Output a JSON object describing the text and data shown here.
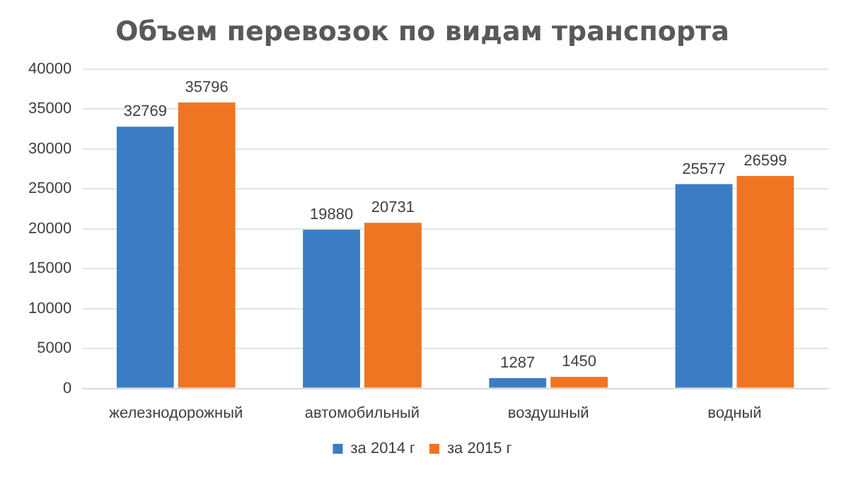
{
  "chart_data": {
    "type": "bar",
    "title": "Объем перевозок по видам транспорта",
    "categories": [
      "железнодорожный",
      "автомобильный",
      "воздушный",
      "водный"
    ],
    "series": [
      {
        "name": "за 2014 г",
        "color": "#3b7dc4",
        "values": [
          32769,
          19880,
          1287,
          25577
        ]
      },
      {
        "name": "за 2015 г",
        "color": "#f07522",
        "values": [
          35796,
          20731,
          1450,
          26599
        ]
      }
    ],
    "ylim": [
      0,
      40000
    ],
    "yticks": [
      0,
      5000,
      10000,
      15000,
      20000,
      25000,
      30000,
      35000,
      40000
    ],
    "grid": "y",
    "legend": "bottom",
    "data_labels": true
  }
}
